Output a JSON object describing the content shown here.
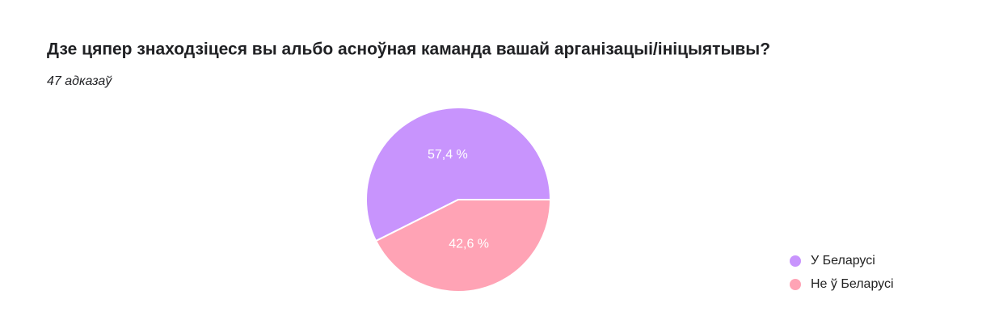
{
  "chart_data": {
    "type": "pie",
    "title": "Дзе цяпер знаходзіцеся вы альбо асноўная каманда вашай арганізацыі/ініцыятывы?",
    "subtitle": "47 адказаў",
    "categories": [
      "У Беларусі",
      "Не ў Беларусі"
    ],
    "values": [
      57.4,
      42.6
    ],
    "value_labels": [
      "57,4 %",
      "42,6 %"
    ],
    "colors": [
      "#c894fd",
      "#ffa3b5"
    ],
    "legend": "right"
  }
}
